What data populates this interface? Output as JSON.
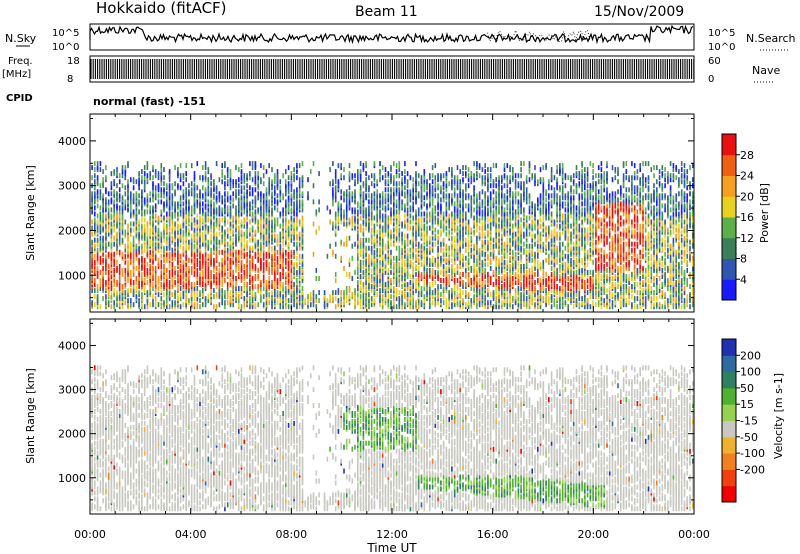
{
  "header": {
    "station": "Hokkaido (fitACF)",
    "beam": "Beam 11",
    "date": "15/Nov/2009"
  },
  "panels": {
    "nsky_label": "N.Sky",
    "nsearch_label": "N.Search",
    "noise_ticks": [
      "10^5",
      "10^0"
    ],
    "freq_label": "Freq.",
    "freq_unit": "[MHz]",
    "freq_ticks": [
      "18",
      "8"
    ],
    "nave_label": "Nave",
    "nave_ticks": [
      "60",
      "0"
    ],
    "cpid_label": "CPID",
    "cpid_text": "normal (fast) -151"
  },
  "chart_data": [
    {
      "type": "heatmap",
      "title": "",
      "xlabel": "",
      "ylabel": "Slant Range [km]",
      "x": [
        "00:00",
        "04:00",
        "08:00",
        "12:00",
        "16:00",
        "20:00",
        "00:00"
      ],
      "ylim": [
        180,
        4600
      ],
      "yticks": [
        1000,
        2000,
        3000,
        4000
      ],
      "colorbar": {
        "label": "Power [dB]",
        "ticks": [
          4,
          8,
          12,
          16,
          20,
          24,
          28
        ],
        "colors": [
          "#1a1aff",
          "#2f55b0",
          "#3a7f5a",
          "#5cb04a",
          "#e8d020",
          "#f5a020",
          "#f06010",
          "#e81010"
        ]
      }
    },
    {
      "type": "heatmap",
      "title": "",
      "xlabel": "Time UT",
      "ylabel": "Slant Range [km]",
      "x": [
        "00:00",
        "04:00",
        "08:00",
        "12:00",
        "16:00",
        "20:00",
        "00:00"
      ],
      "ylim": [
        180,
        4600
      ],
      "yticks": [
        1000,
        2000,
        3000,
        4000
      ],
      "colorbar": {
        "label": "Velocity [m s-1]",
        "ticks": [
          200,
          100,
          50,
          15,
          -15,
          -50,
          -100,
          -200
        ],
        "colors": [
          "#2030b0",
          "#2e6aa0",
          "#2e8060",
          "#50b030",
          "#98d050",
          "#c8c8c0",
          "#f0b030",
          "#f08020",
          "#f04010",
          "#f00000"
        ]
      }
    }
  ]
}
